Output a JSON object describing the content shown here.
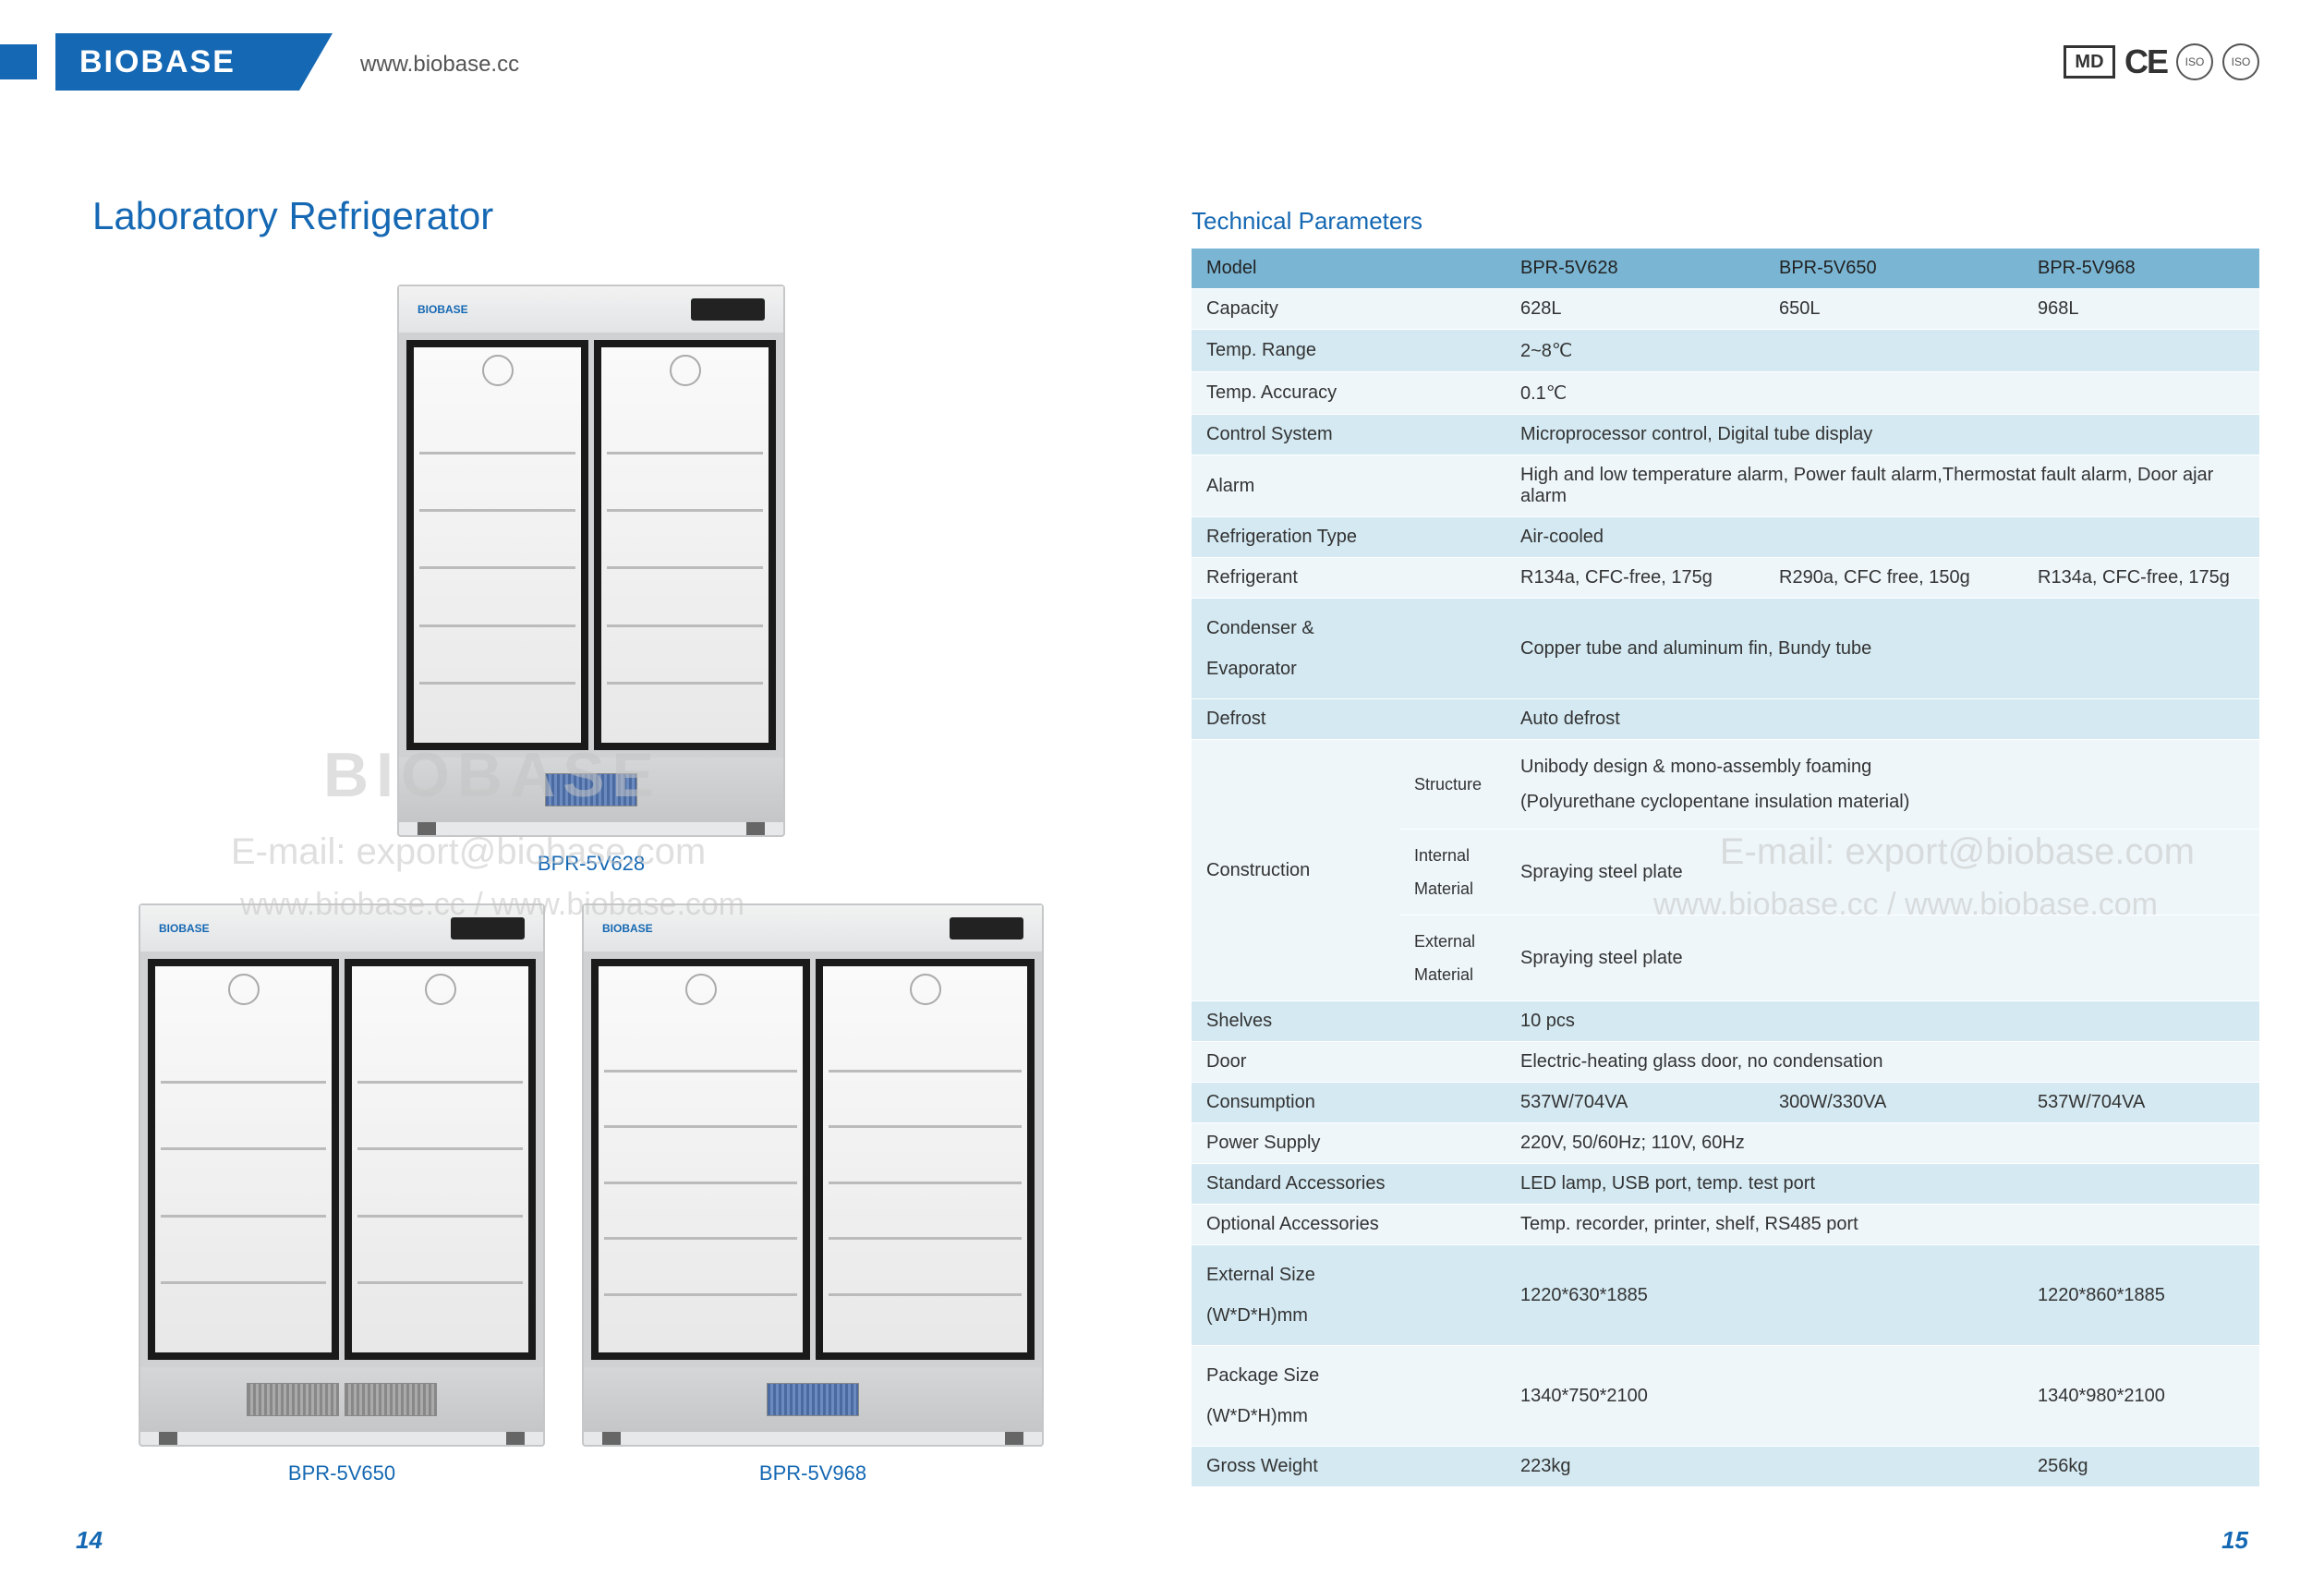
{
  "header": {
    "logo": "BIOBASE",
    "url": "www.biobase.cc",
    "md": "MD",
    "ce": "CE",
    "iso1": "ISO",
    "iso2": "ISO"
  },
  "title": "Laboratory Refrigerator",
  "products": {
    "p1": "BPR-5V628",
    "p2": "BPR-5V650",
    "p3": "BPR-5V968"
  },
  "watermark": {
    "brand": "BIOBASE",
    "email": "E-mail: export@biobase.com",
    "urls": "www.biobase.cc / www.biobase.com"
  },
  "tech_title": "Technical Parameters",
  "table": {
    "h_model": "Model",
    "h_m1": "BPR-5V628",
    "h_m2": "BPR-5V650",
    "h_m3": "BPR-5V968",
    "capacity_l": "Capacity",
    "capacity_1": "628L",
    "capacity_2": "650L",
    "capacity_3": "968L",
    "temp_range_l": "Temp. Range",
    "temp_range_v": "2~8℃",
    "temp_acc_l": "Temp. Accuracy",
    "temp_acc_v": "0.1℃",
    "control_l": "Control System",
    "control_v": "Microprocessor control, Digital tube display",
    "alarm_l": "Alarm",
    "alarm_v": "High and low temperature alarm, Power fault alarm,Thermostat fault alarm, Door ajar alarm",
    "reftype_l": "Refrigeration Type",
    "reftype_v": "Air-cooled",
    "refrig_l": "Refrigerant",
    "refrig_1": "R134a, CFC-free, 175g",
    "refrig_2": "R290a, CFC free, 150g",
    "refrig_3": "R134a, CFC-free, 175g",
    "cond_l1": "Condenser &",
    "cond_l2": "Evaporator",
    "cond_v": "Copper tube and aluminum fin, Bundy tube",
    "defrost_l": "Defrost",
    "defrost_v": "Auto defrost",
    "constr_l": "Construction",
    "constr_s1": "Structure",
    "constr_s1v1": "Unibody design & mono-assembly foaming",
    "constr_s1v2": "(Polyurethane cyclopentane insulation material)",
    "constr_s2a": "Internal",
    "constr_s2b": "Material",
    "constr_s2v": "Spraying steel plate",
    "constr_s3a": "External",
    "constr_s3b": "Material",
    "constr_s3v": "Spraying steel plate",
    "shelves_l": "Shelves",
    "shelves_v": "10 pcs",
    "door_l": "Door",
    "door_v": "Electric-heating glass door, no condensation",
    "cons_l": "Consumption",
    "cons_1": "537W/704VA",
    "cons_2": "300W/330VA",
    "cons_3": "537W/704VA",
    "power_l": "Power Supply",
    "power_v": "220V, 50/60Hz; 110V, 60Hz",
    "stdacc_l": "Standard Accessories",
    "stdacc_v": "LED lamp, USB port, temp. test port",
    "optacc_l": "Optional Accessories",
    "optacc_v": "Temp. recorder, printer, shelf, RS485 port",
    "ext_l1": "External Size",
    "ext_l2": "(W*D*H)mm",
    "ext_1": "1220*630*1885",
    "ext_3": "1220*860*1885",
    "pkg_l1": "Package Size",
    "pkg_l2": "(W*D*H)mm",
    "pkg_1": "1340*750*2100",
    "pkg_3": "1340*980*2100",
    "gw_l": "Gross Weight",
    "gw_1": "223kg",
    "gw_3": "256kg"
  },
  "page_left": "14",
  "page_right": "15",
  "colors": {
    "brand_blue": "#1568b3",
    "table_header": "#7ab6d4",
    "table_row_a": "#d4e9f2",
    "table_row_b": "#eef6fa"
  }
}
